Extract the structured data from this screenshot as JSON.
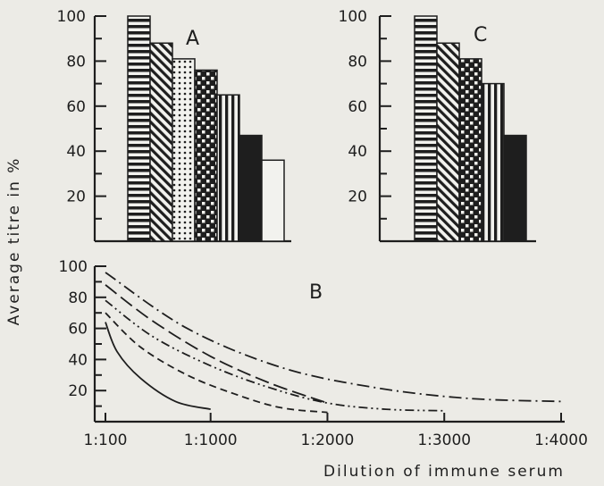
{
  "chart_data": [
    {
      "type": "bar",
      "panel_label": "A",
      "ylim": [
        0,
        100
      ],
      "yticks": [
        20,
        40,
        60,
        80,
        100
      ],
      "values": [
        100,
        88,
        81,
        76,
        65,
        47,
        36
      ],
      "patterns": [
        "hstripe",
        "diag",
        "dots",
        "check",
        "vstripe",
        "solid",
        "empty"
      ]
    },
    {
      "type": "bar",
      "panel_label": "C",
      "ylim": [
        0,
        100
      ],
      "yticks": [
        20,
        40,
        60,
        80,
        100
      ],
      "values": [
        100,
        88,
        81,
        70,
        47
      ],
      "patterns": [
        "hstripe",
        "diag",
        "check",
        "vstripe",
        "solid"
      ]
    },
    {
      "type": "line",
      "panel_label": "B",
      "ylim": [
        0,
        100
      ],
      "yticks": [
        20,
        40,
        60,
        80,
        100
      ],
      "xticks": [
        100,
        1000,
        2000,
        3000,
        4000
      ],
      "xtick_labels": [
        "1:100",
        "1:1000",
        "1:2000",
        "1:3000",
        "1:4000"
      ],
      "xlabel": "Dilution of immune serum",
      "series": [
        {
          "dash": "solid",
          "x": [
            100,
            200,
            400,
            700,
            1000
          ],
          "y": [
            64,
            45,
            28,
            13,
            8
          ]
        },
        {
          "dash": "dash",
          "x": [
            100,
            400,
            800,
            1200,
            1600,
            2000
          ],
          "y": [
            70,
            48,
            30,
            18,
            9,
            6
          ]
        },
        {
          "dash": "dash-dot-dot",
          "x": [
            100,
            500,
            1000,
            1500,
            2000,
            2500,
            3000
          ],
          "y": [
            78,
            55,
            36,
            22,
            12,
            8,
            7
          ]
        },
        {
          "dash": "long-dash",
          "x": [
            100,
            500,
            1000,
            1500,
            2000
          ],
          "y": [
            88,
            65,
            42,
            25,
            12
          ]
        },
        {
          "dash": "dash-dot",
          "x": [
            100,
            800,
            1600,
            2400,
            3200,
            4000
          ],
          "y": [
            96,
            60,
            35,
            22,
            15,
            13
          ]
        }
      ]
    }
  ],
  "ylabel": "Average titre in %"
}
